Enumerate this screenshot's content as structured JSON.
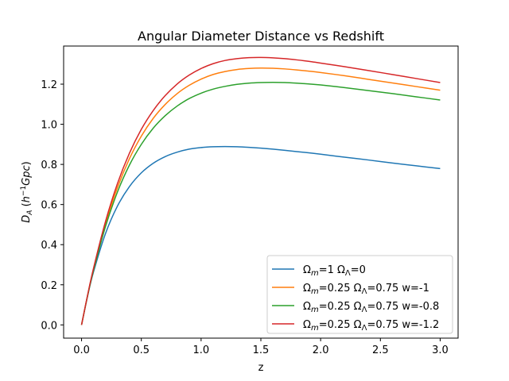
{
  "chart_data": {
    "type": "line",
    "title": "Angular Diameter Distance vs Redshift",
    "xlabel": "z",
    "ylabel": "D_A (h^-1 Gpc)",
    "ylabel_parts": {
      "symbol": "D",
      "sub": "A",
      "open": " (",
      "unit_h": "h",
      "exp": "−1",
      "unit_rest": "Gpc",
      "close": ")"
    },
    "xlim": [
      -0.15,
      3.15
    ],
    "ylim": [
      -0.066,
      1.39
    ],
    "xticks": [
      0.0,
      0.5,
      1.0,
      1.5,
      2.0,
      2.5,
      3.0
    ],
    "xtick_labels": [
      "0.0",
      "0.5",
      "1.0",
      "1.5",
      "2.0",
      "2.5",
      "3.0"
    ],
    "yticks": [
      0.0,
      0.2,
      0.4,
      0.6,
      0.8,
      1.0,
      1.2
    ],
    "ytick_labels": [
      "0.0",
      "0.2",
      "0.4",
      "0.6",
      "0.8",
      "1.0",
      "1.2"
    ],
    "grid": false,
    "legend_position": "lower-right",
    "x": [
      0,
      0.05,
      0.1,
      0.2,
      0.3,
      0.4,
      0.5,
      0.6,
      0.7,
      0.8,
      0.9,
      1.0,
      1.1,
      1.2,
      1.3,
      1.4,
      1.5,
      1.6,
      1.7,
      1.8,
      1.9,
      2.0,
      2.2,
      2.4,
      2.6,
      2.8,
      3.0
    ],
    "series": [
      {
        "color": "#1f77b4",
        "legend": {
          "a": "Ω",
          "a_sub": "m",
          "b": "=1 Ω",
          "b_sub": "Λ",
          "c": "=0"
        },
        "values": [
          0,
          0.142,
          0.264,
          0.455,
          0.592,
          0.689,
          0.758,
          0.806,
          0.839,
          0.861,
          0.876,
          0.884,
          0.888,
          0.889,
          0.888,
          0.885,
          0.881,
          0.876,
          0.87,
          0.864,
          0.858,
          0.851,
          0.836,
          0.822,
          0.807,
          0.793,
          0.779
        ]
      },
      {
        "color": "#ff7f0e",
        "legend": {
          "a": "Ω",
          "a_sub": "m",
          "b": "=0.25 Ω",
          "b_sub": "Λ",
          "c": "=0.75 w=-1"
        },
        "values": [
          0,
          0.145,
          0.277,
          0.503,
          0.684,
          0.828,
          0.941,
          1.03,
          1.099,
          1.153,
          1.194,
          1.225,
          1.248,
          1.263,
          1.273,
          1.278,
          1.28,
          1.279,
          1.276,
          1.271,
          1.265,
          1.258,
          1.242,
          1.224,
          1.206,
          1.188,
          1.17
        ]
      },
      {
        "color": "#2ca02c",
        "legend": {
          "a": "Ω",
          "a_sub": "m",
          "b": "=0.25 Ω",
          "b_sub": "Λ",
          "c": "=0.75 w=-0.8"
        },
        "values": [
          0,
          0.144,
          0.272,
          0.49,
          0.662,
          0.796,
          0.9,
          0.981,
          1.043,
          1.091,
          1.128,
          1.155,
          1.175,
          1.189,
          1.199,
          1.205,
          1.208,
          1.209,
          1.208,
          1.205,
          1.201,
          1.196,
          1.183,
          1.168,
          1.153,
          1.137,
          1.121
        ]
      },
      {
        "color": "#d62728",
        "legend": {
          "a": "Ω",
          "a_sub": "m",
          "b": "=0.25 Ω",
          "b_sub": "Λ",
          "c": "=0.75 w=-1.2"
        },
        "values": [
          0,
          0.147,
          0.282,
          0.515,
          0.704,
          0.855,
          0.975,
          1.069,
          1.143,
          1.201,
          1.245,
          1.278,
          1.302,
          1.318,
          1.327,
          1.332,
          1.333,
          1.331,
          1.327,
          1.321,
          1.314,
          1.305,
          1.287,
          1.268,
          1.248,
          1.228,
          1.208
        ]
      }
    ]
  }
}
